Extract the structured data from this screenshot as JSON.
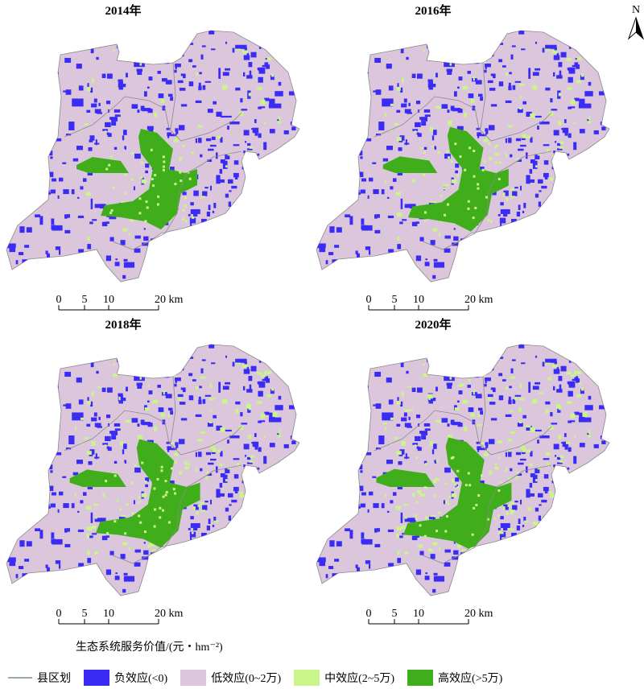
{
  "panels": [
    {
      "title": "2014年"
    },
    {
      "title": "2016年"
    },
    {
      "title": "2018年"
    },
    {
      "title": "2020年"
    }
  ],
  "scale_bar": {
    "ticks": [
      "0",
      "5",
      "10",
      "20 km"
    ]
  },
  "north_label": "N",
  "legend": {
    "title": "生态系统服务价值/(元・hm⁻²)",
    "items": [
      {
        "label": "县区划",
        "color": "#99a7b0",
        "kind": "line"
      },
      {
        "label": "负效应(<0)",
        "color": "#3a2cf5"
      },
      {
        "label": "低效应(0~2万)",
        "color": "#dcc6dc"
      },
      {
        "label": "中效应(2~5万)",
        "color": "#c9f58a"
      },
      {
        "label": "高效应(>5万)",
        "color": "#3fae1a"
      }
    ]
  }
}
